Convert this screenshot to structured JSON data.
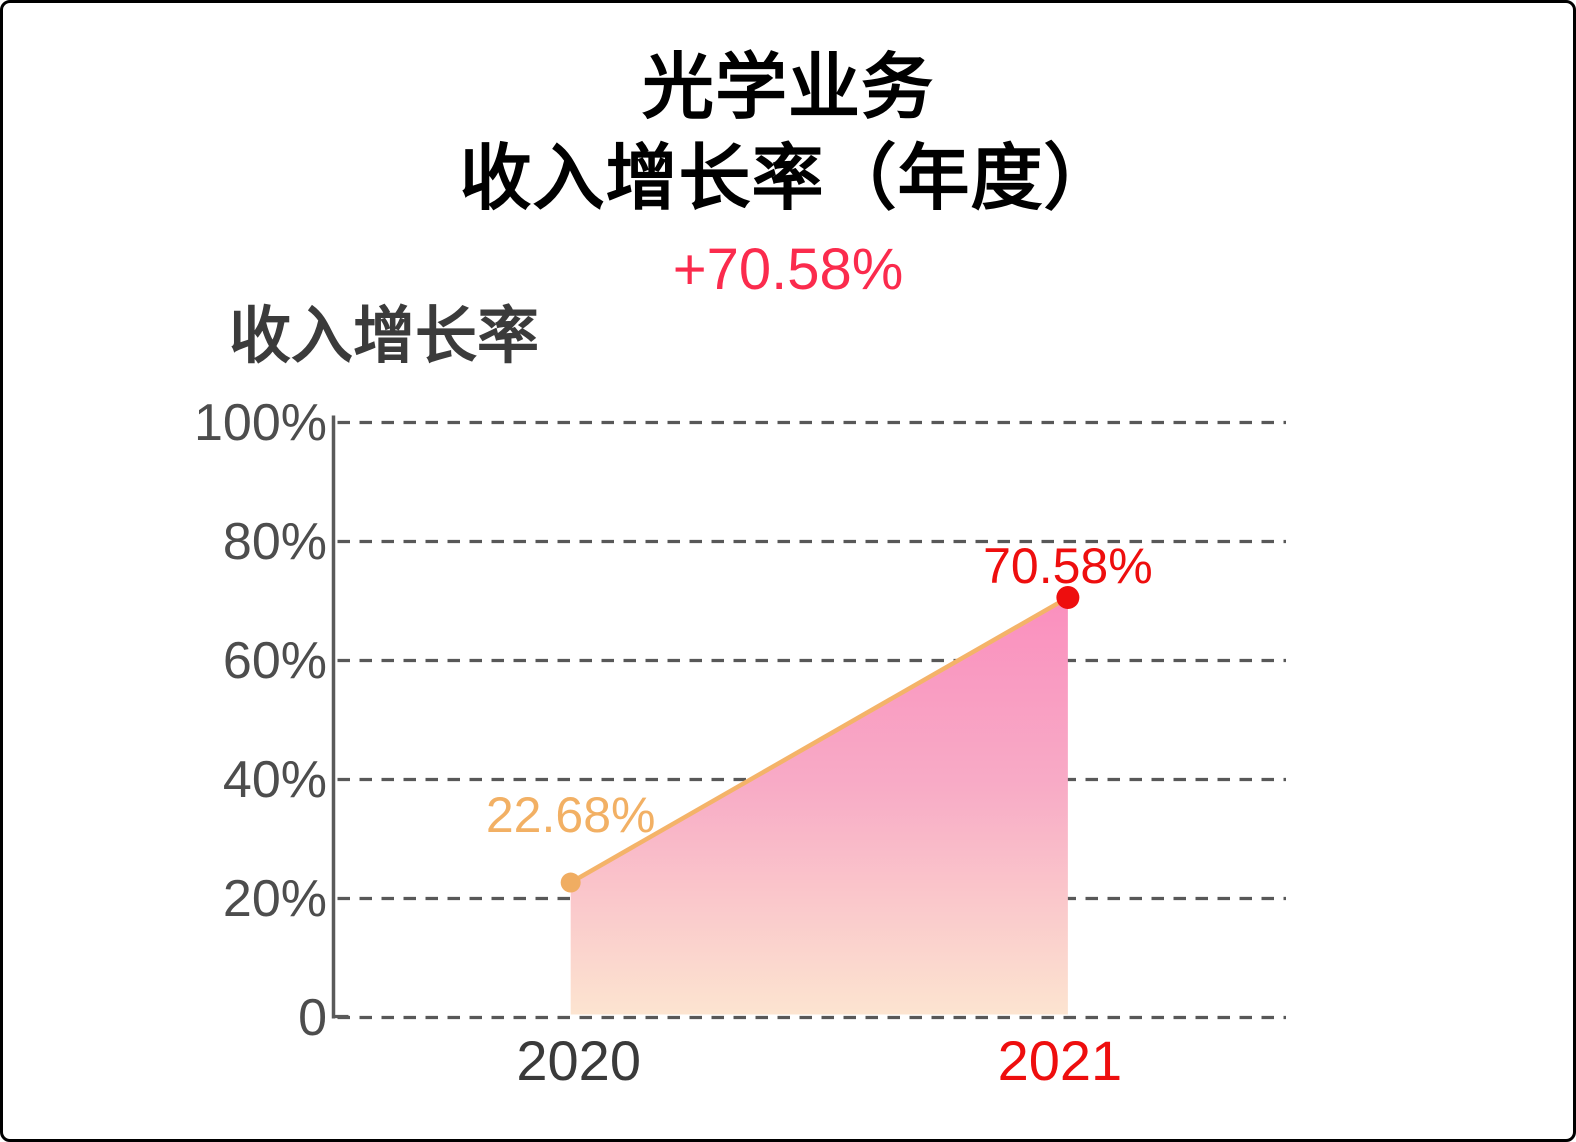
{
  "header": {
    "title_line1": "光学业务",
    "title_line2": "收入增长率（年度）",
    "delta_label": "+70.58%"
  },
  "chart": {
    "panel_title": "收入增长率"
  },
  "chart_data": {
    "type": "area",
    "title": "收入增长率",
    "categories": [
      "2020",
      "2021"
    ],
    "series": [
      {
        "name": "收入增长率",
        "values": [
          22.68,
          70.58
        ]
      }
    ],
    "points": [
      {
        "category": "2020",
        "value": 22.68,
        "label": "22.68%",
        "point_color": "#f0ad62",
        "label_color": "#f2b064",
        "category_color": "#3a3a3a"
      },
      {
        "category": "2021",
        "value": 70.58,
        "label": "70.58%",
        "point_color": "#ee0e0e",
        "label_color": "#ee0e0e",
        "category_color": "#ee0e0e"
      }
    ],
    "ylim": [
      0,
      100
    ],
    "yticks": [
      0,
      20,
      40,
      60,
      80,
      100
    ],
    "ytick_labels": [
      "0",
      "20%",
      "40%",
      "60%",
      "80%",
      "100%"
    ],
    "grid": true,
    "grid_style": "dashed",
    "legend": false
  },
  "colors": {
    "title_text": "#000000",
    "headline_red": "#fb2b4d",
    "accent_red": "#ee0e0e",
    "accent_orange": "#f0ad62",
    "trend_line": "#f4b369",
    "area_top": "#fa8fbe",
    "area_mid": "#f8abc6",
    "area_bottom": "#fce4d0",
    "grid_line": "#585858",
    "axis_line": "#5a5a5a",
    "tick_text": "#4d4d4d",
    "panel_title_text": "#3b3b3b"
  }
}
